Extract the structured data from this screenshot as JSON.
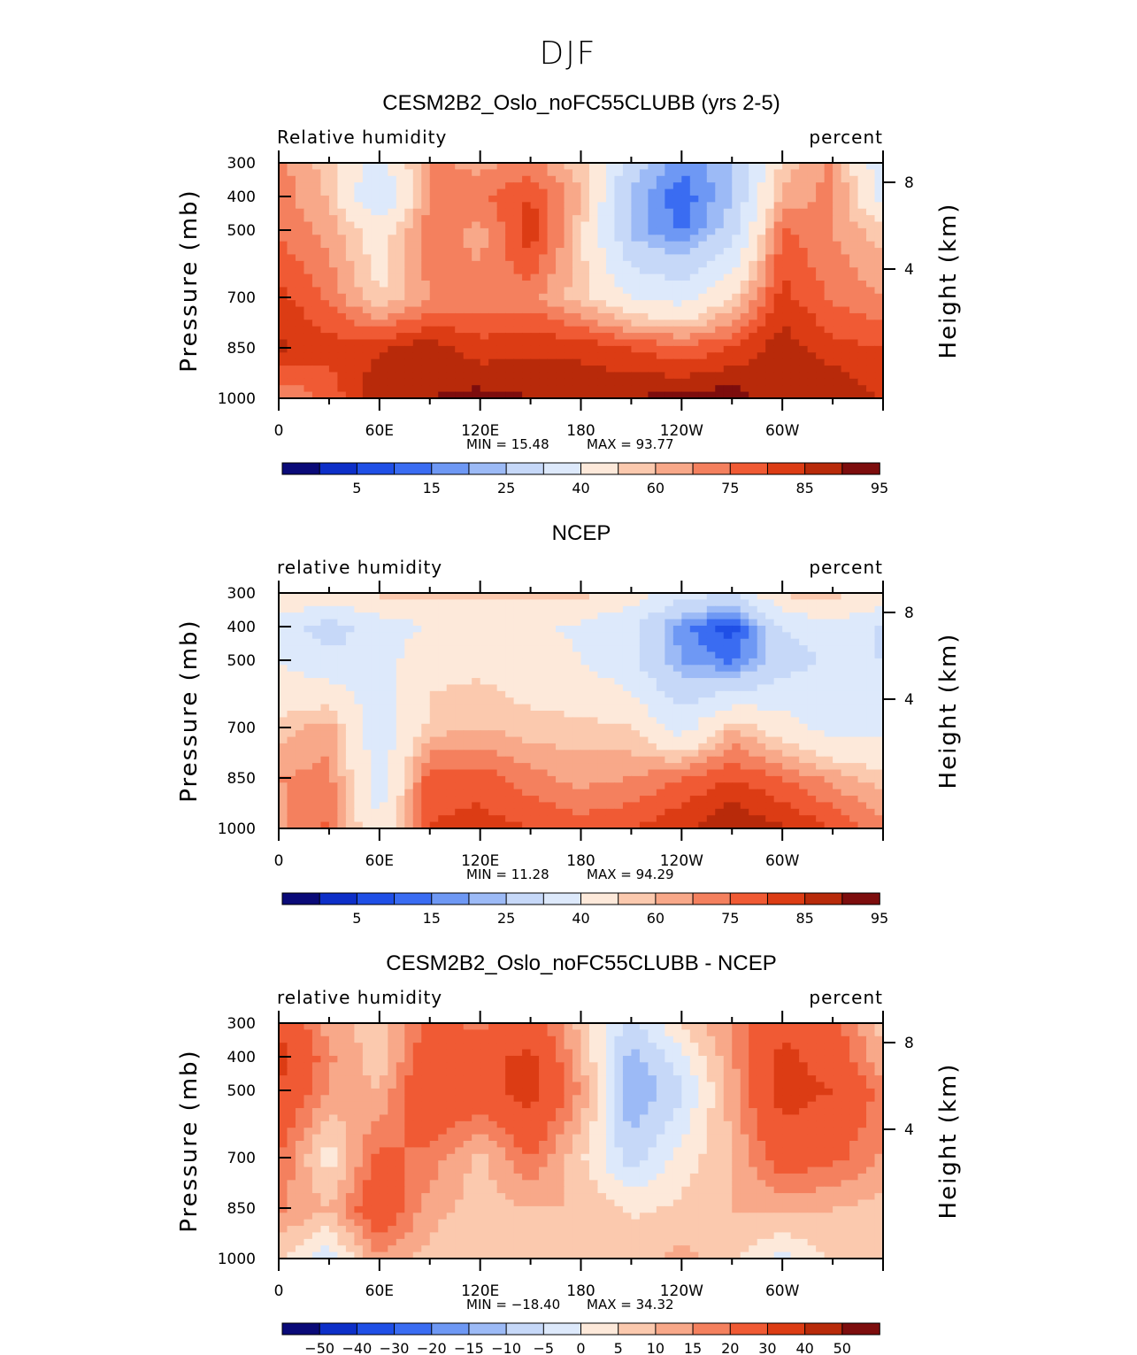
{
  "page_title": "DJF",
  "palette_rh": [
    "#0a0a78",
    "#0d2fc8",
    "#1f4fe6",
    "#3a6cf2",
    "#6e98f4",
    "#9cbaf6",
    "#c6d8f8",
    "#dde9fb",
    "#fde9da",
    "#fbc9ae",
    "#f8a889",
    "#f4805e",
    "#f05a34",
    "#dc3c14",
    "#b82a0a",
    "#7d0d0d"
  ],
  "chart_data": [
    {
      "type": "heatmap",
      "name": "model",
      "title": "CESM2B2_Oslo_noFC55CLUBB (yrs 2-5)",
      "left_label": "Relative  humidity",
      "right_label": "percent",
      "ylabel": "Pressure  (mb)",
      "ylabel_right": "Height  (km)",
      "x_ticks": [
        "0",
        "60E",
        "120E",
        "180",
        "120W",
        "60W"
      ],
      "y_ticks": [
        "300",
        "400",
        "500",
        "700",
        "850",
        "1000"
      ],
      "y_ticks_right": [
        "8",
        "4"
      ],
      "min_label": "MIN  =    15.48",
      "max_label": "MAX  =    93.77",
      "colorbar_labels": [
        "5",
        "15",
        "25",
        "40",
        "60",
        "75",
        "85",
        "95"
      ],
      "colorbar_levels": [
        5,
        10,
        15,
        20,
        25,
        30,
        40,
        50,
        60,
        65,
        70,
        75,
        80,
        85,
        90,
        95
      ],
      "value_range": [
        15.48,
        93.77
      ],
      "grid_lon": [
        0,
        30,
        60,
        90,
        120,
        150,
        180,
        210,
        240,
        270,
        300,
        330,
        360
      ],
      "grid_p": [
        300,
        400,
        500,
        700,
        850,
        1000
      ],
      "values": [
        [
          72,
          62,
          45,
          72,
          68,
          72,
          62,
          35,
          22,
          30,
          62,
          72,
          42
        ],
        [
          73,
          64,
          38,
          70,
          74,
          80,
          66,
          28,
          16,
          30,
          66,
          72,
          46
        ],
        [
          74,
          68,
          55,
          74,
          68,
          84,
          62,
          28,
          19,
          34,
          76,
          70,
          62
        ],
        [
          82,
          74,
          60,
          70,
          72,
          72,
          62,
          50,
          46,
          60,
          82,
          74,
          70
        ],
        [
          86,
          82,
          84,
          88,
          82,
          84,
          84,
          80,
          76,
          80,
          88,
          82,
          80
        ],
        [
          70,
          76,
          90,
          90,
          92,
          90,
          88,
          90,
          92,
          93,
          86,
          90,
          84
        ]
      ]
    },
    {
      "type": "heatmap",
      "name": "observed",
      "title": "NCEP",
      "left_label": "relative  humidity",
      "right_label": "percent",
      "ylabel": "Pressure  (mb)",
      "ylabel_right": "Height  (km)",
      "x_ticks": [
        "0",
        "60E",
        "120E",
        "180",
        "120W",
        "60W"
      ],
      "y_ticks": [
        "300",
        "400",
        "500",
        "700",
        "850",
        "1000"
      ],
      "y_ticks_right": [
        "8",
        "4"
      ],
      "min_label": "MIN  =    11.28",
      "max_label": "MAX  =    94.29",
      "colorbar_labels": [
        "5",
        "15",
        "25",
        "40",
        "60",
        "75",
        "85",
        "95"
      ],
      "colorbar_levels": [
        5,
        10,
        15,
        20,
        25,
        30,
        40,
        50,
        60,
        65,
        70,
        75,
        80,
        85,
        90,
        95
      ],
      "value_range": [
        11.28,
        94.29
      ],
      "grid_lon": [
        0,
        30,
        60,
        90,
        120,
        150,
        180,
        210,
        240,
        270,
        300,
        330,
        360
      ],
      "grid_p": [
        300,
        400,
        500,
        700,
        850,
        1000
      ],
      "values": [
        [
          62,
          58,
          62,
          62,
          62,
          62,
          62,
          55,
          45,
          40,
          62,
          62,
          58
        ],
        [
          45,
          35,
          45,
          50,
          50,
          52,
          48,
          42,
          22,
          12,
          40,
          48,
          38
        ],
        [
          50,
          42,
          45,
          58,
          58,
          55,
          50,
          42,
          25,
          18,
          35,
          42,
          40
        ],
        [
          62,
          68,
          42,
          62,
          65,
          62,
          62,
          60,
          45,
          65,
          55,
          45,
          48
        ],
        [
          70,
          72,
          45,
          78,
          78,
          72,
          68,
          70,
          75,
          80,
          75,
          68,
          62
        ],
        [
          68,
          76,
          50,
          80,
          82,
          80,
          78,
          80,
          84,
          90,
          86,
          80,
          72
        ]
      ]
    },
    {
      "type": "heatmap",
      "name": "difference",
      "title": "CESM2B2_Oslo_noFC55CLUBB - NCEP",
      "left_label": "relative  humidity",
      "right_label": "percent",
      "ylabel": "Pressure  (mb)",
      "ylabel_right": "Height  (km)",
      "x_ticks": [
        "0",
        "60E",
        "120E",
        "180",
        "120W",
        "60W"
      ],
      "y_ticks": [
        "300",
        "400",
        "500",
        "700",
        "850",
        "1000"
      ],
      "y_ticks_right": [
        "8",
        "4"
      ],
      "min_label": "MIN  = −18.40",
      "max_label": "MAX  =    34.32",
      "colorbar_labels": [
        "−50",
        "−40",
        "−30",
        "−20",
        "−15",
        "−10",
        "−5",
        "0",
        "5",
        "10",
        "15",
        "20",
        "30",
        "40",
        "50"
      ],
      "colorbar_levels": [
        -50,
        -40,
        -30,
        -20,
        -15,
        -10,
        -5,
        0,
        5,
        10,
        15,
        20,
        30,
        40,
        50
      ],
      "value_range": [
        -18.4,
        34.32
      ],
      "grid_lon": [
        0,
        30,
        60,
        90,
        120,
        150,
        180,
        210,
        240,
        270,
        300,
        330,
        360
      ],
      "grid_p": [
        300,
        400,
        500,
        700,
        850,
        1000
      ],
      "values": [
        [
          28,
          12,
          8,
          22,
          18,
          24,
          8,
          -8,
          6,
          15,
          28,
          22,
          8
        ],
        [
          34,
          16,
          6,
          26,
          28,
          32,
          10,
          -12,
          -2,
          14,
          32,
          26,
          10
        ],
        [
          30,
          14,
          10,
          30,
          26,
          34,
          14,
          -15,
          -6,
          12,
          34,
          30,
          18
        ],
        [
          20,
          2,
          22,
          18,
          8,
          20,
          6,
          -8,
          2,
          10,
          24,
          22,
          14
        ],
        [
          16,
          10,
          28,
          12,
          8,
          10,
          10,
          4,
          6,
          10,
          12,
          10,
          8
        ],
        [
          6,
          -4,
          14,
          8,
          6,
          8,
          10,
          8,
          12,
          6,
          -2,
          6,
          10
        ]
      ]
    }
  ]
}
